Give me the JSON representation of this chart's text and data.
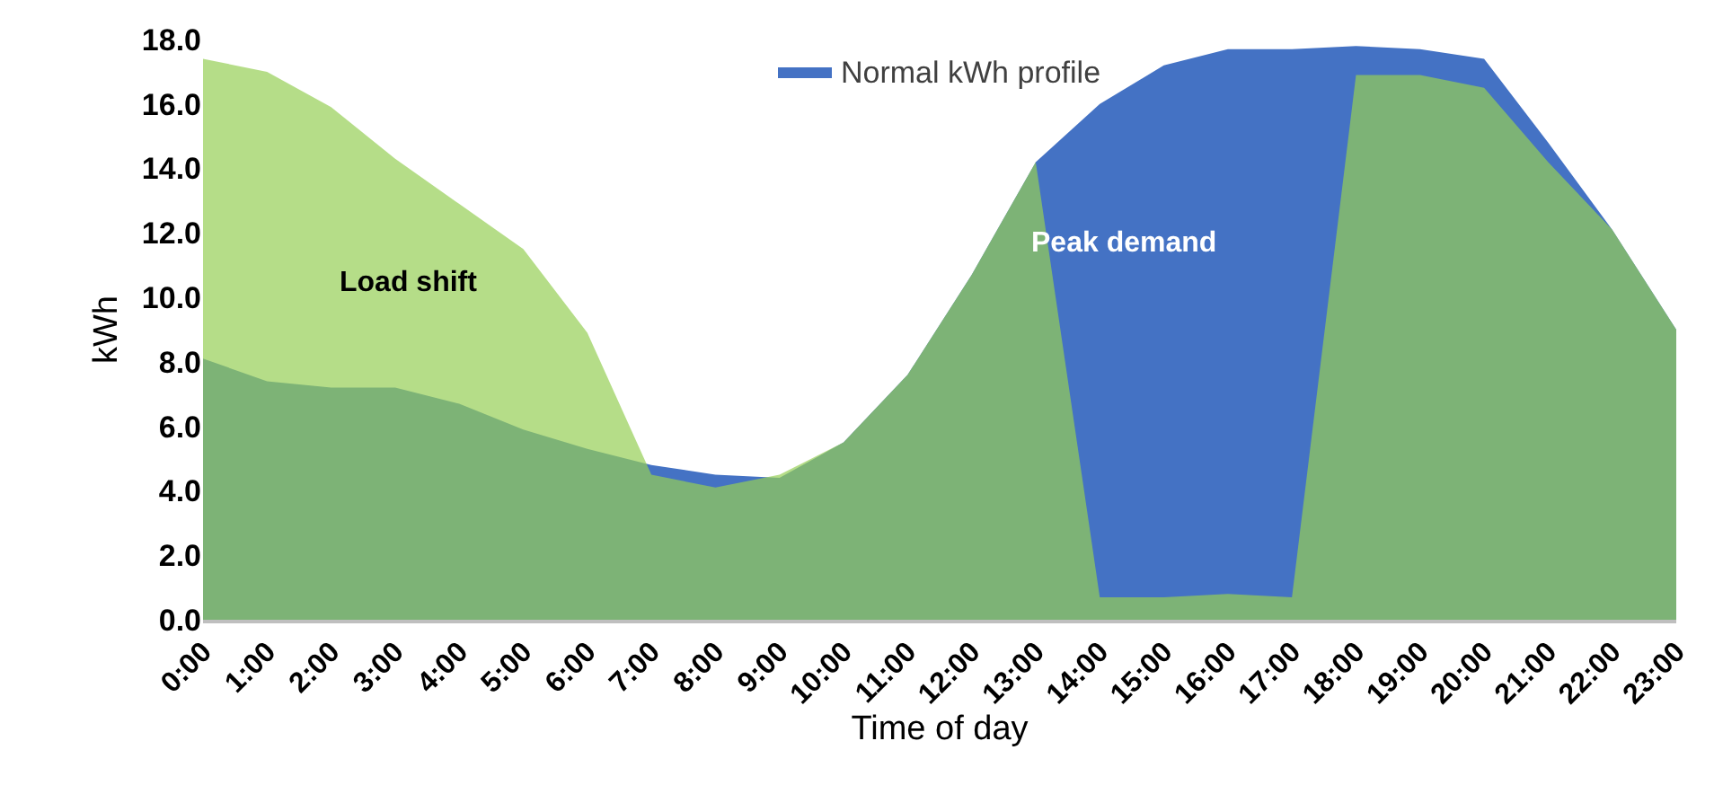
{
  "chart_data": {
    "type": "area",
    "xlabel": "Time of day",
    "ylabel": "kWh",
    "categories": [
      "0:00",
      "1:00",
      "2:00",
      "3:00",
      "4:00",
      "5:00",
      "6:00",
      "7:00",
      "8:00",
      "9:00",
      "10:00",
      "11:00",
      "12:00",
      "13:00",
      "14:00",
      "15:00",
      "16:00",
      "17:00",
      "18:00",
      "19:00",
      "20:00",
      "21:00",
      "22:00",
      "23:00"
    ],
    "series": [
      {
        "name": "Normal kWh profile",
        "color": "#4472c4",
        "values": [
          8.1,
          7.4,
          7.2,
          7.2,
          6.7,
          5.9,
          5.3,
          4.8,
          4.5,
          4.4,
          5.5,
          7.6,
          10.7,
          14.2,
          16.0,
          17.2,
          17.7,
          17.7,
          17.8,
          17.7,
          17.4,
          14.8,
          12.1,
          9.0
        ]
      },
      {
        "color": "#95ce55",
        "values": [
          17.4,
          17.0,
          15.9,
          14.3,
          12.9,
          11.5,
          8.9,
          4.5,
          4.1,
          4.5,
          5.5,
          7.6,
          10.7,
          14.2,
          0.7,
          0.7,
          0.8,
          0.7,
          16.9,
          16.9,
          16.5,
          14.2,
          12.1,
          9.0
        ]
      }
    ],
    "ylim": [
      0,
      18
    ],
    "yticks": [
      {
        "value": 0,
        "label": "0.0"
      },
      {
        "value": 2,
        "label": "2.0"
      },
      {
        "value": 4,
        "label": "4.0"
      },
      {
        "value": 6,
        "label": "6.0"
      },
      {
        "value": 8,
        "label": "8.0"
      },
      {
        "value": 10,
        "label": "10.0"
      },
      {
        "value": 12,
        "label": "12.0"
      },
      {
        "value": 14,
        "label": "14.0"
      },
      {
        "value": 16,
        "label": "16.0"
      },
      {
        "value": 18,
        "label": "18.0"
      }
    ],
    "annotations": [
      "Load shift",
      "Peak demand"
    ],
    "legend": "top",
    "grid": false
  }
}
